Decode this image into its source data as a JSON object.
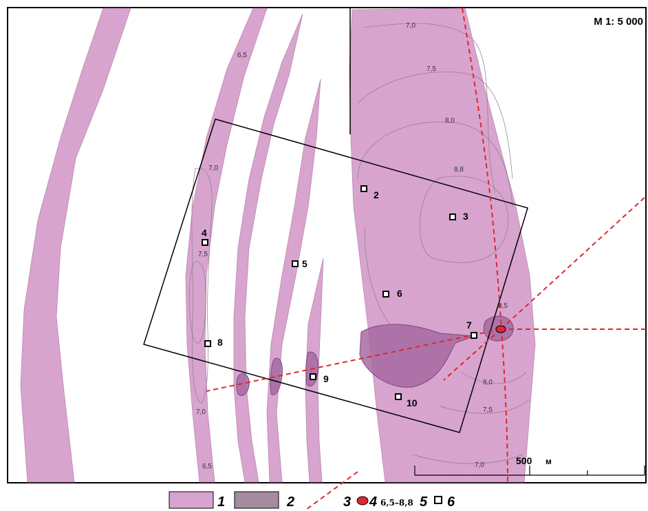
{
  "map": {
    "scale_label": "М 1: 5 000",
    "scale_bar_label": "500",
    "scale_bar_unit": "м"
  },
  "colors": {
    "zone": "#dba9d2",
    "zone_dark": "#a66aa2",
    "fault": "#e0262a",
    "point_red": "#e0262a",
    "contour": "#8a7b88"
  },
  "points": [
    {
      "label": "2"
    },
    {
      "label": "3"
    },
    {
      "label": "4"
    },
    {
      "label": "5"
    },
    {
      "label": "6"
    },
    {
      "label": "7"
    },
    {
      "label": "8"
    },
    {
      "label": "9"
    },
    {
      "label": "10"
    }
  ],
  "isolines": [
    "7,0",
    "7,5",
    "8,0",
    "8,8",
    "8,5",
    "8,0",
    "7,5",
    "7,0",
    "6,5",
    "7,0",
    "7,5",
    "7,0",
    "6,5"
  ],
  "legend": {
    "item1": "1",
    "item2": "2",
    "item3": "3",
    "item4": "4",
    "item4_range": "6,5–8,8",
    "item5": "5",
    "item6": "6"
  }
}
